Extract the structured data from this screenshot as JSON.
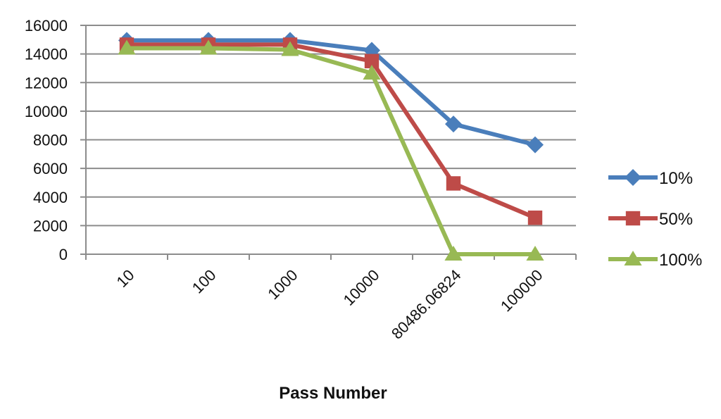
{
  "chart_data": {
    "type": "line",
    "title": "",
    "xlabel": "Pass Number",
    "ylabel": "",
    "categories": [
      "10",
      "100",
      "1000",
      "10000",
      "80486.06824",
      "100000"
    ],
    "ylim": [
      0,
      16000
    ],
    "yticks": [
      0,
      2000,
      4000,
      6000,
      8000,
      10000,
      12000,
      14000,
      16000
    ],
    "grid": true,
    "legend_position": "right",
    "series": [
      {
        "name": "10%",
        "color": "#4a7ebb",
        "marker": "diamond",
        "values": [
          14950,
          14950,
          14950,
          14250,
          9100,
          7650
        ]
      },
      {
        "name": "50%",
        "color": "#be4b48",
        "marker": "square",
        "values": [
          14650,
          14650,
          14650,
          13500,
          4950,
          2550
        ]
      },
      {
        "name": "100%",
        "color": "#98b954",
        "marker": "triangle",
        "values": [
          14400,
          14400,
          14300,
          12650,
          0,
          0
        ]
      }
    ]
  }
}
